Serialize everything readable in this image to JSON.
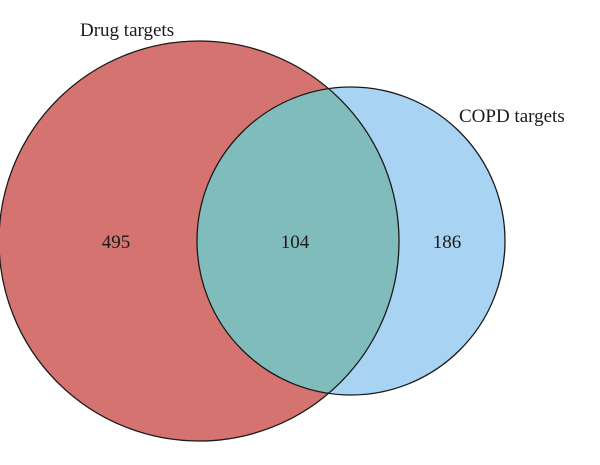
{
  "diagram": {
    "type": "venn",
    "sets": [
      {
        "id": "drug",
        "label": "Drug targets",
        "only_count": "495",
        "fill": "#d4736f"
      },
      {
        "id": "copd",
        "label": "COPD targets",
        "only_count": "186",
        "fill": "#a9d3f3"
      }
    ],
    "intersection": {
      "count": "104",
      "fill": "#80bcbb"
    },
    "stroke": "#1a1a1a"
  }
}
